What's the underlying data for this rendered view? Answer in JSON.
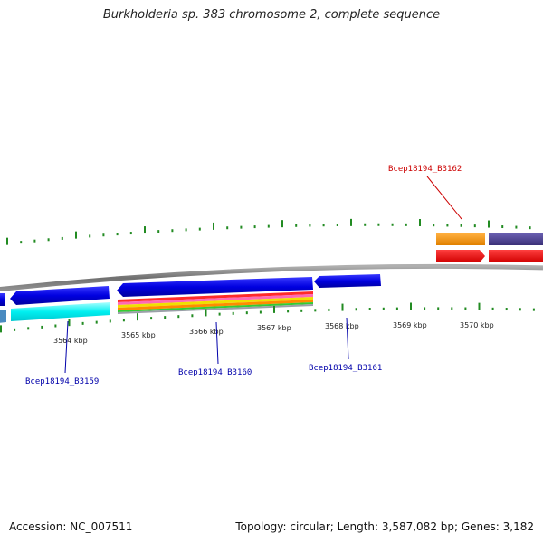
{
  "title": "Burkholderia sp. 383 chromosome 2, complete sequence",
  "footer": {
    "accession": "Accession: NC_007511",
    "topology": "Topology: circular; Length: 3,587,082 bp; Genes: 3,182"
  },
  "scale": {
    "unit": "kbp",
    "labels": [
      "3564 kbp",
      "3565 kbp",
      "3566 kbp",
      "3567 kbp",
      "3568 kbp",
      "3569 kbp",
      "3570 kbp"
    ]
  },
  "genes": [
    {
      "label": "Bcep18194_B3159",
      "color": "#0000aa"
    },
    {
      "label": "Bcep18194_B3160",
      "color": "#0000aa"
    },
    {
      "label": "Bcep18194_B3161",
      "color": "#0000aa"
    },
    {
      "label": "Bcep18194_B3162",
      "color": "#cc0000"
    }
  ],
  "colors": {
    "backbone": "#808080",
    "forward_cds": "#0000ee",
    "reverse_cds": "#00f0f0",
    "orange_feature": "#f39200",
    "purple_feature": "#4b3f8c",
    "red_feature": "#ee0000",
    "ticks": "#228b22"
  }
}
